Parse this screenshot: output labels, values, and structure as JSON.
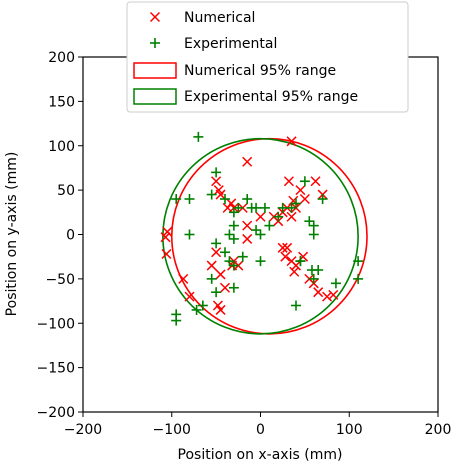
{
  "chart_data": {
    "type": "scatter",
    "title": "",
    "xlabel": "Position on x-axis (mm)",
    "ylabel": "Position on y-axis (mm)",
    "xlim": [
      -200,
      200
    ],
    "ylim": [
      -200,
      200
    ],
    "xticks": [
      -200,
      -100,
      0,
      100,
      200
    ],
    "yticks": [
      -200,
      -150,
      -100,
      -50,
      0,
      50,
      100,
      150,
      200
    ],
    "grid": false,
    "legend_position": "top-center",
    "legend": [
      {
        "label": "Numerical",
        "marker": "x",
        "color": "#ff0000"
      },
      {
        "label": "Experimental",
        "marker": "+",
        "color": "#008000"
      },
      {
        "label": "Numerical 95% range",
        "marker": "circle-outline",
        "color": "#ff0000"
      },
      {
        "label": "Experimental 95% range",
        "marker": "circle-outline",
        "color": "#008000"
      }
    ],
    "series": [
      {
        "name": "Numerical",
        "marker": "x",
        "color": "#ff0000",
        "points": [
          [
            -105,
            3
          ],
          [
            -107,
            -3
          ],
          [
            -106,
            -22
          ],
          [
            -87,
            -50
          ],
          [
            -80,
            -70
          ],
          [
            -50,
            60
          ],
          [
            -47,
            50
          ],
          [
            -45,
            45
          ],
          [
            -37,
            30
          ],
          [
            -33,
            35
          ],
          [
            -30,
            30
          ],
          [
            -50,
            -20
          ],
          [
            -55,
            -35
          ],
          [
            -45,
            -45
          ],
          [
            -30,
            -30
          ],
          [
            -32,
            -35
          ],
          [
            -25,
            -35
          ],
          [
            -40,
            -60
          ],
          [
            -48,
            -80
          ],
          [
            -45,
            -85
          ],
          [
            -15,
            82
          ],
          [
            -20,
            30
          ],
          [
            -15,
            10
          ],
          [
            -15,
            -5
          ],
          [
            0,
            20
          ],
          [
            15,
            20
          ],
          [
            20,
            15
          ],
          [
            25,
            25
          ],
          [
            30,
            30
          ],
          [
            35,
            20
          ],
          [
            35,
            105
          ],
          [
            32,
            60
          ],
          [
            45,
            50
          ],
          [
            50,
            40
          ],
          [
            40,
            30
          ],
          [
            25,
            -15
          ],
          [
            28,
            -25
          ],
          [
            35,
            -30
          ],
          [
            40,
            -35
          ],
          [
            38,
            -42
          ],
          [
            48,
            -25
          ],
          [
            55,
            -50
          ],
          [
            60,
            -55
          ],
          [
            65,
            -65
          ],
          [
            75,
            -70
          ],
          [
            82,
            -68
          ],
          [
            62,
            60
          ],
          [
            70,
            45
          ],
          [
            37,
            38
          ],
          [
            30,
            -15
          ]
        ]
      },
      {
        "name": "Experimental",
        "marker": "+",
        "color": "#008000",
        "points": [
          [
            -70,
            110
          ],
          [
            -95,
            40
          ],
          [
            -80,
            40
          ],
          [
            -80,
            0
          ],
          [
            -95,
            -90
          ],
          [
            -95,
            -97
          ],
          [
            -72,
            -85
          ],
          [
            -65,
            -80
          ],
          [
            -50,
            70
          ],
          [
            -55,
            45
          ],
          [
            -40,
            40
          ],
          [
            -50,
            -10
          ],
          [
            -40,
            -20
          ],
          [
            -35,
            0
          ],
          [
            -30,
            -5
          ],
          [
            -30,
            10
          ],
          [
            -30,
            25
          ],
          [
            -25,
            30
          ],
          [
            -20,
            -25
          ],
          [
            -35,
            -30
          ],
          [
            -30,
            -35
          ],
          [
            -55,
            -50
          ],
          [
            -50,
            -65
          ],
          [
            -30,
            -60
          ],
          [
            -15,
            40
          ],
          [
            -10,
            30
          ],
          [
            -5,
            30
          ],
          [
            5,
            30
          ],
          [
            0,
            -30
          ],
          [
            10,
            10
          ],
          [
            20,
            20
          ],
          [
            25,
            30
          ],
          [
            35,
            30
          ],
          [
            40,
            35
          ],
          [
            45,
            -30
          ],
          [
            50,
            60
          ],
          [
            55,
            15
          ],
          [
            60,
            0
          ],
          [
            60,
            10
          ],
          [
            58,
            -40
          ],
          [
            60,
            -50
          ],
          [
            65,
            -40
          ],
          [
            70,
            40
          ],
          [
            85,
            -55
          ],
          [
            110,
            -30
          ],
          [
            110,
            -50
          ],
          [
            40,
            -80
          ],
          [
            45,
            -30
          ],
          [
            -5,
            5
          ],
          [
            0,
            0
          ]
        ]
      }
    ],
    "ranges": [
      {
        "name": "Numerical 95% range",
        "color": "#ff0000",
        "cx": 10,
        "cy": -2,
        "r": 110
      },
      {
        "name": "Experimental 95% range",
        "color": "#008000",
        "cx": 0,
        "cy": -2,
        "r": 110
      }
    ]
  }
}
